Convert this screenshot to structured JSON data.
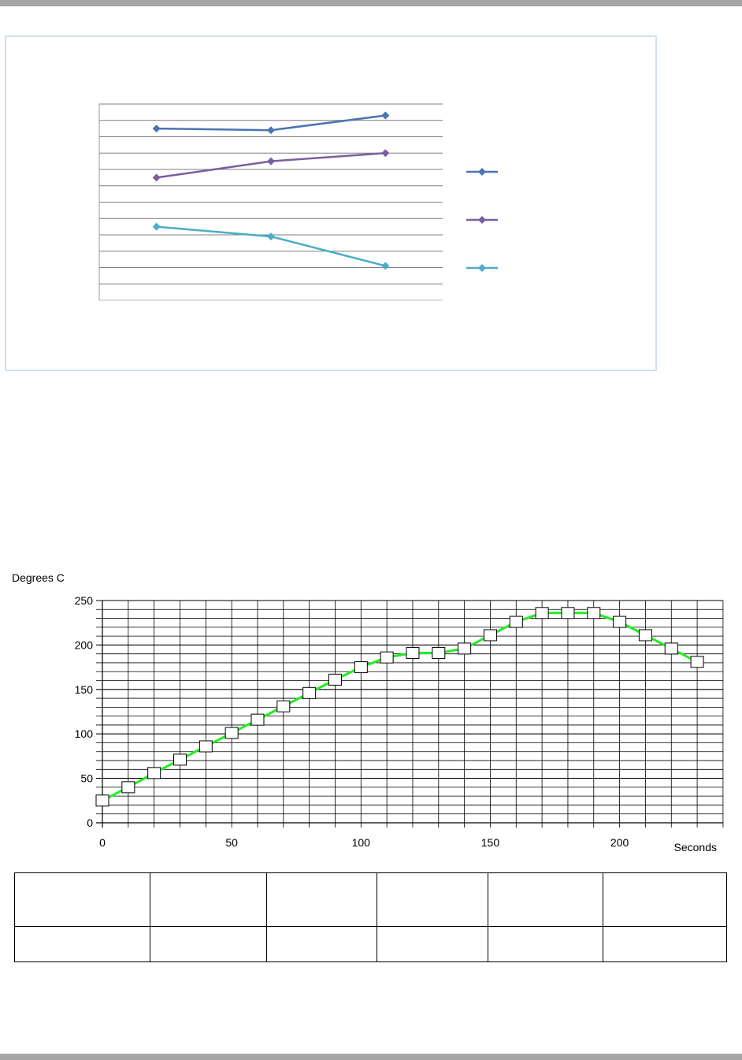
{
  "chart_data": [
    {
      "type": "line",
      "categories": [
        "",
        "",
        ""
      ],
      "series": [
        {
          "values": [
            10.5,
            10.4,
            11.3
          ],
          "color": "#4a74b4"
        },
        {
          "values": [
            7.5,
            8.5,
            9.0
          ],
          "color": "#7a5ea0"
        },
        {
          "values": [
            4.5,
            3.9,
            2.1
          ],
          "color": "#4badc6"
        }
      ],
      "ylim": [
        0,
        12
      ],
      "grid": true,
      "legend_position": "right"
    },
    {
      "type": "line",
      "xlabel": "Seconds",
      "ylabel": "Degrees C",
      "x": [
        0,
        10,
        20,
        30,
        40,
        50,
        60,
        70,
        80,
        90,
        100,
        110,
        120,
        130,
        140,
        150,
        160,
        170,
        180,
        190,
        200,
        210,
        220,
        230
      ],
      "series": [
        {
          "values": [
            25,
            40,
            56,
            71,
            86,
            101,
            116,
            131,
            146,
            161,
            175,
            186,
            191,
            191,
            196,
            211,
            226,
            236,
            236,
            236,
            226,
            211,
            196,
            181
          ],
          "color": "#22ee22",
          "marker": "square"
        }
      ],
      "xlim": [
        0,
        240
      ],
      "ylim": [
        0,
        250
      ],
      "xticks": [
        0,
        50,
        100,
        150,
        200
      ],
      "yticks": [
        0,
        50,
        100,
        150,
        200,
        250
      ],
      "grid": true
    }
  ],
  "table": {
    "rows": [
      [
        "",
        "",
        "",
        "",
        "",
        ""
      ],
      [
        "",
        "",
        "",
        "",
        "",
        ""
      ]
    ]
  }
}
